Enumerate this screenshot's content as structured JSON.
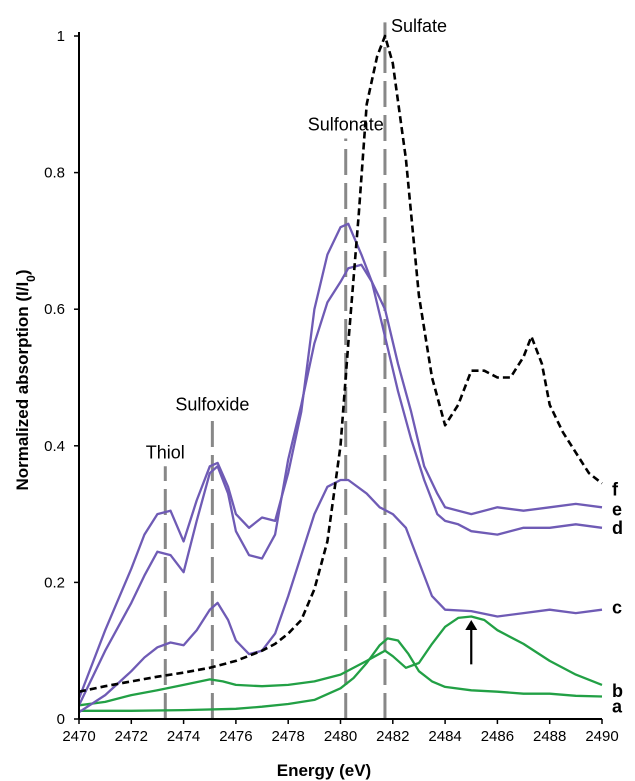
{
  "chart_data": {
    "type": "line",
    "title": "",
    "xlabel": "Energy (eV)",
    "ylabel": "Normalized absorption (I/I",
    "ylabel_sub": "0",
    "ylabel_end": ")",
    "xlim": [
      2470,
      2490
    ],
    "ylim": [
      0,
      1
    ],
    "x_ticks": [
      2470,
      2472,
      2474,
      2476,
      2478,
      2480,
      2482,
      2484,
      2486,
      2488,
      2490
    ],
    "y_ticks": [
      0,
      0.2,
      0.4,
      0.6,
      0.8,
      1
    ],
    "y_tick_labels": [
      "0",
      "0.2",
      "0.4",
      "0.6",
      "0.8",
      "1"
    ],
    "grid": false,
    "reference_lines": [
      {
        "label": "Thiol",
        "x": 2473.3,
        "top": 0.37
      },
      {
        "label": "Sulfoxide",
        "x": 2475.1,
        "top": 0.44
      },
      {
        "label": "Sulfonate",
        "x": 2480.2,
        "top": 0.85
      },
      {
        "label": "Sulfate",
        "x": 2481.7,
        "top": 1.02
      }
    ],
    "annotations": [
      {
        "type": "arrow",
        "x": 2485.0,
        "y_from": 0.08,
        "y_to": 0.145
      }
    ],
    "series": [
      {
        "name": "a",
        "color": "#22a045",
        "dash": "solid",
        "x": [
          2470,
          2472,
          2474,
          2476,
          2477,
          2478,
          2479,
          2480,
          2480.5,
          2481,
          2481.5,
          2481.8,
          2482.2,
          2482.6,
          2483,
          2483.5,
          2484,
          2485,
          2486,
          2487,
          2488,
          2489,
          2490
        ],
        "values": [
          0.012,
          0.012,
          0.013,
          0.015,
          0.018,
          0.022,
          0.028,
          0.045,
          0.06,
          0.082,
          0.108,
          0.118,
          0.115,
          0.095,
          0.07,
          0.055,
          0.047,
          0.042,
          0.04,
          0.037,
          0.037,
          0.034,
          0.033
        ]
      },
      {
        "name": "b",
        "color": "#22a045",
        "dash": "solid",
        "x": [
          2470,
          2471,
          2472,
          2473,
          2474,
          2475,
          2475.5,
          2476,
          2477,
          2478,
          2479,
          2480,
          2481,
          2481.7,
          2482,
          2482.5,
          2483,
          2483.5,
          2484,
          2484.5,
          2485,
          2485.5,
          2486,
          2487,
          2488,
          2489,
          2490
        ],
        "values": [
          0.02,
          0.025,
          0.035,
          0.042,
          0.05,
          0.058,
          0.055,
          0.05,
          0.048,
          0.05,
          0.055,
          0.065,
          0.085,
          0.1,
          0.092,
          0.075,
          0.082,
          0.11,
          0.135,
          0.148,
          0.15,
          0.145,
          0.13,
          0.11,
          0.085,
          0.065,
          0.05
        ]
      },
      {
        "name": "c",
        "color": "#6f5bb5",
        "dash": "solid",
        "x": [
          2470,
          2471,
          2472,
          2472.5,
          2473,
          2473.5,
          2474,
          2474.5,
          2475,
          2475.3,
          2475.7,
          2476,
          2476.5,
          2477,
          2477.5,
          2478,
          2478.5,
          2479,
          2479.5,
          2480,
          2480.3,
          2481,
          2481.5,
          2482,
          2482.5,
          2483,
          2483.5,
          2484,
          2485,
          2486,
          2487,
          2488,
          2489,
          2490
        ],
        "values": [
          0.01,
          0.035,
          0.07,
          0.09,
          0.105,
          0.112,
          0.108,
          0.13,
          0.16,
          0.17,
          0.145,
          0.115,
          0.095,
          0.1,
          0.125,
          0.18,
          0.24,
          0.3,
          0.34,
          0.35,
          0.35,
          0.33,
          0.31,
          0.3,
          0.28,
          0.23,
          0.18,
          0.16,
          0.158,
          0.15,
          0.155,
          0.16,
          0.155,
          0.16
        ]
      },
      {
        "name": "d",
        "color": "#6f5bb5",
        "dash": "solid",
        "x": [
          2470,
          2471,
          2472,
          2472.5,
          2473,
          2473.5,
          2474,
          2474.5,
          2475,
          2475.3,
          2475.7,
          2476,
          2476.5,
          2477,
          2477.5,
          2478,
          2478.5,
          2479,
          2479.5,
          2480,
          2480.3,
          2480.8,
          2481.2,
          2481.7,
          2482.2,
          2482.7,
          2483.2,
          2483.7,
          2484,
          2484.5,
          2485,
          2486,
          2487,
          2488,
          2489,
          2490
        ],
        "values": [
          0.02,
          0.1,
          0.17,
          0.21,
          0.245,
          0.24,
          0.215,
          0.29,
          0.36,
          0.37,
          0.33,
          0.275,
          0.24,
          0.235,
          0.27,
          0.38,
          0.46,
          0.55,
          0.61,
          0.64,
          0.66,
          0.665,
          0.64,
          0.56,
          0.48,
          0.41,
          0.35,
          0.3,
          0.29,
          0.285,
          0.275,
          0.27,
          0.28,
          0.28,
          0.285,
          0.28
        ]
      },
      {
        "name": "e",
        "color": "#6f5bb5",
        "dash": "solid",
        "x": [
          2470,
          2471,
          2472,
          2472.5,
          2473,
          2473.5,
          2474,
          2474.5,
          2475,
          2475.3,
          2475.7,
          2476,
          2476.5,
          2477,
          2477.5,
          2478,
          2478.5,
          2479,
          2479.5,
          2480,
          2480.3,
          2480.8,
          2481.2,
          2481.7,
          2482.2,
          2482.7,
          2483.2,
          2483.7,
          2484,
          2485,
          2486,
          2487,
          2488,
          2489,
          2490
        ],
        "values": [
          0.03,
          0.13,
          0.22,
          0.27,
          0.3,
          0.305,
          0.26,
          0.32,
          0.37,
          0.375,
          0.34,
          0.3,
          0.28,
          0.295,
          0.29,
          0.36,
          0.45,
          0.6,
          0.68,
          0.72,
          0.725,
          0.68,
          0.64,
          0.6,
          0.52,
          0.45,
          0.37,
          0.33,
          0.31,
          0.3,
          0.31,
          0.305,
          0.31,
          0.315,
          0.31
        ]
      },
      {
        "name": "f",
        "color": "#000000",
        "dash": "dashed",
        "x": [
          2470,
          2471,
          2472,
          2473,
          2474,
          2475,
          2476,
          2477,
          2477.5,
          2478,
          2478.5,
          2479,
          2479.5,
          2480,
          2480.3,
          2480.7,
          2481,
          2481.4,
          2481.7,
          2482,
          2482.5,
          2483,
          2483.5,
          2484,
          2484.5,
          2485,
          2485.5,
          2486,
          2486.5,
          2487,
          2487.3,
          2487.7,
          2488,
          2488.5,
          2489,
          2489.5,
          2490
        ],
        "values": [
          0.04,
          0.048,
          0.055,
          0.062,
          0.068,
          0.075,
          0.085,
          0.1,
          0.11,
          0.125,
          0.145,
          0.19,
          0.26,
          0.4,
          0.55,
          0.74,
          0.9,
          0.97,
          1.0,
          0.96,
          0.82,
          0.62,
          0.5,
          0.43,
          0.46,
          0.51,
          0.51,
          0.5,
          0.5,
          0.53,
          0.56,
          0.52,
          0.46,
          0.42,
          0.39,
          0.36,
          0.345
        ]
      }
    ]
  }
}
